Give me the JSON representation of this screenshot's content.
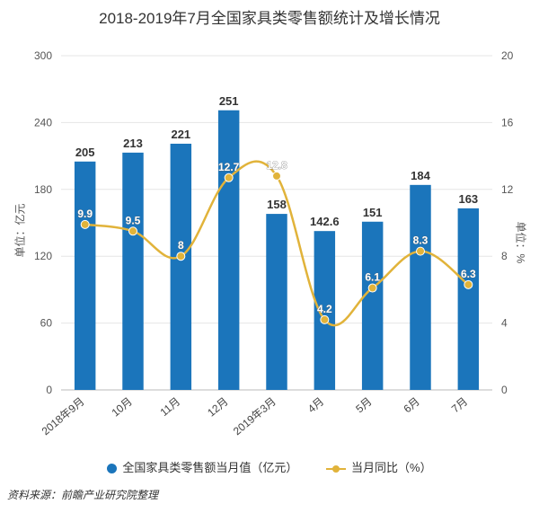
{
  "chart_data": {
    "type": "bar",
    "title": "2018-2019年7月全国家具类零售额统计及增长情况",
    "ylabel": "单位：亿元",
    "ylabel_right": "单位：%",
    "ylim": [
      0,
      300
    ],
    "yticks": [
      "0",
      "60",
      "120",
      "180",
      "240",
      "300"
    ],
    "ylim_right": [
      0,
      20
    ],
    "yticks_right": [
      "0",
      "4",
      "8",
      "12",
      "16",
      "20"
    ],
    "grid": true,
    "legend_position": "bottom",
    "categories": [
      "2018年9月",
      "10月",
      "11月",
      "12月",
      "2019年3月",
      "4月",
      "5月",
      "6月",
      "7月"
    ],
    "series": [
      {
        "name": "全国家具类零售额当月值（亿元）",
        "type": "bar",
        "axis": "left",
        "values": [
          205,
          213,
          221,
          251,
          158,
          142.6,
          151,
          184,
          163
        ],
        "labels": [
          "205",
          "213",
          "221",
          "251",
          "158",
          "142.6",
          "151",
          "184",
          "163"
        ],
        "color": "#1b75bb"
      },
      {
        "name": "当月同比（%）",
        "type": "line",
        "axis": "right",
        "values": [
          9.9,
          9.5,
          8,
          12.7,
          12.8,
          4.2,
          6.1,
          8.3,
          6.3
        ],
        "labels": [
          "9.9",
          "9.5",
          "8",
          "12.7",
          "12.8",
          "4.2",
          "6.1",
          "8.3",
          "6.3"
        ],
        "color": "#e1b33a"
      }
    ]
  },
  "source": "资料来源：前瞻产业研究院整理"
}
